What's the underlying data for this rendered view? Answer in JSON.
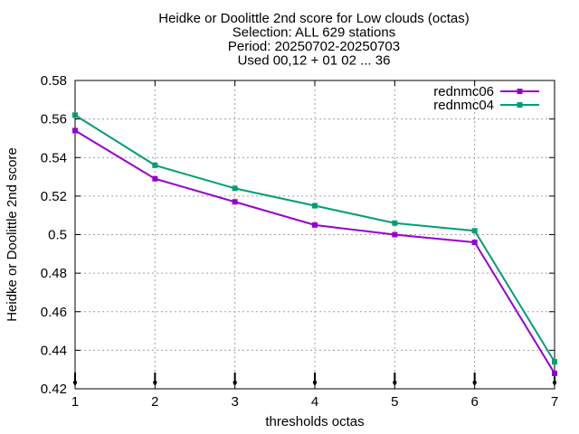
{
  "chart_data": {
    "type": "line",
    "title_lines": [
      "Heidke or Doolittle 2nd score  for Low clouds (octas)",
      "Selection: ALL    629 stations",
      "Period: 20250702-20250703",
      "Used 00,12 + 01 02 ... 36"
    ],
    "xlabel": "thresholds octas",
    "ylabel": "Heidke or Doolittle 2nd score",
    "x": [
      1,
      2,
      3,
      4,
      5,
      6,
      7
    ],
    "x_ticks": [
      "1",
      "2",
      "3",
      "4",
      "5",
      "6",
      "7"
    ],
    "y_ticks": [
      "0.42",
      "0.44",
      "0.46",
      "0.48",
      "0.5",
      "0.52",
      "0.54",
      "0.56",
      "0.58"
    ],
    "xlim": [
      1,
      7
    ],
    "ylim": [
      0.42,
      0.58
    ],
    "grid": true,
    "legend_position": "top-right",
    "series": [
      {
        "name": "rednmc06",
        "color": "#9400d3",
        "values": [
          0.554,
          0.529,
          0.517,
          0.505,
          0.5,
          0.496,
          0.428
        ]
      },
      {
        "name": "rednmc04",
        "color": "#009e73",
        "values": [
          0.562,
          0.536,
          0.524,
          0.515,
          0.506,
          0.502,
          0.434
        ]
      }
    ]
  }
}
